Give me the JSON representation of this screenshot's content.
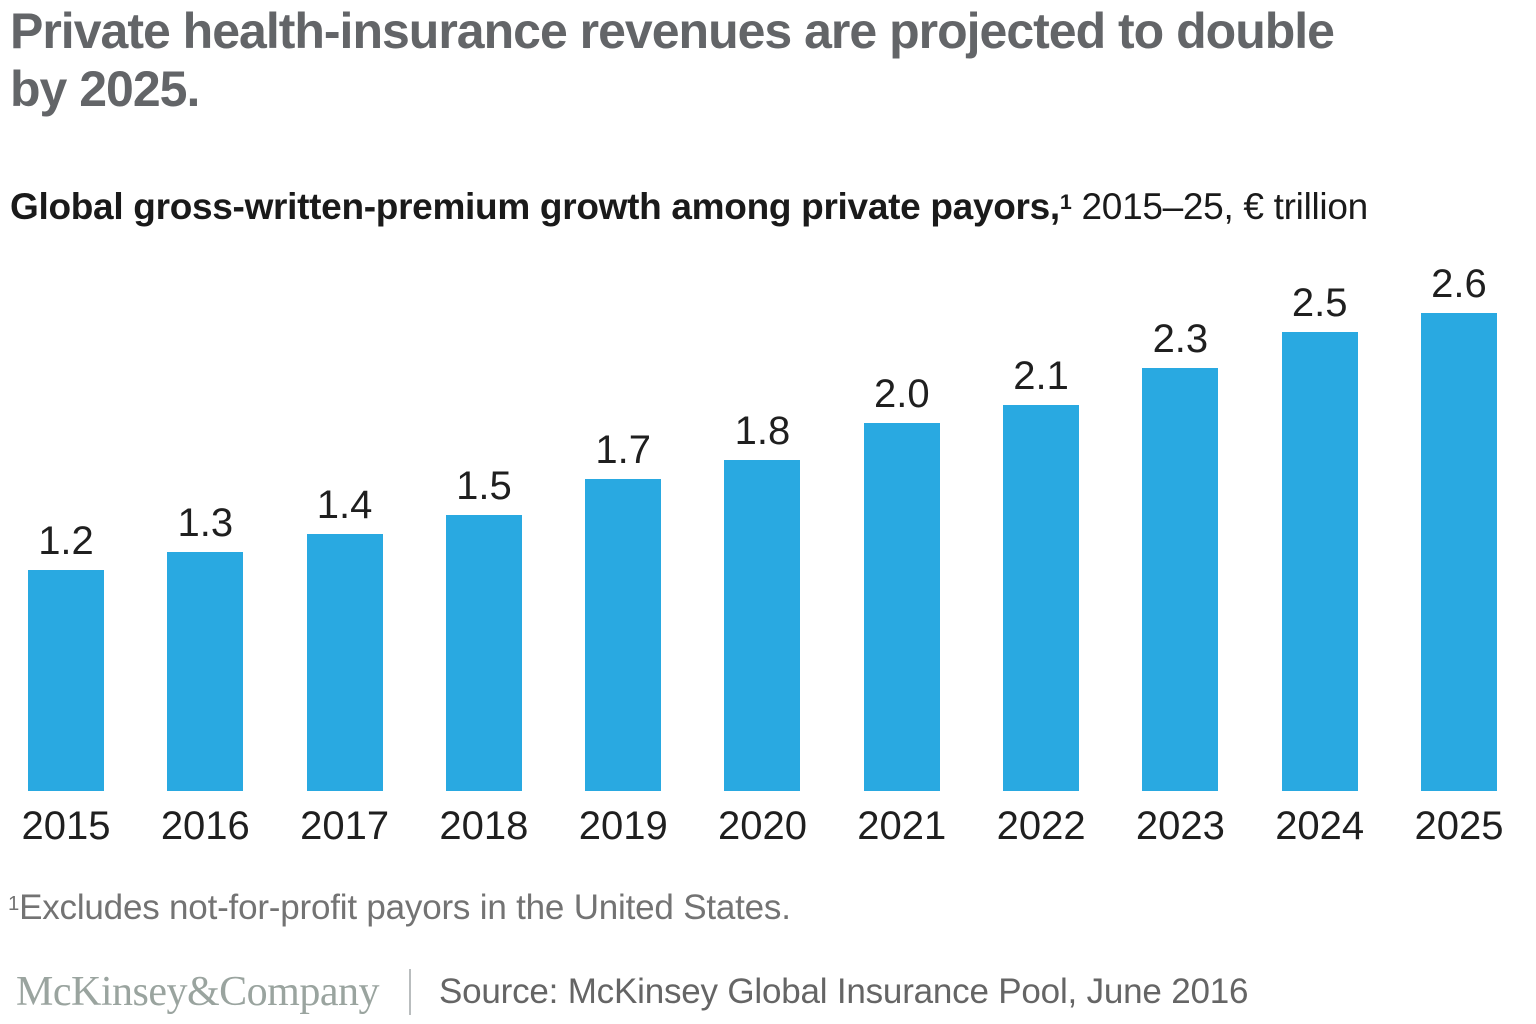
{
  "title": {
    "line1": "Private health-insurance revenues are projected to double",
    "line2": "by 2025."
  },
  "subtitle": {
    "bold": "Global gross-written-premium growth among private payors,",
    "sup": "1",
    "rest": " 2015–25, € trillion"
  },
  "chart_data": {
    "type": "bar",
    "categories": [
      "2015",
      "2016",
      "2017",
      "2018",
      "2019",
      "2020",
      "2021",
      "2022",
      "2023",
      "2024",
      "2025"
    ],
    "values": [
      1.2,
      1.3,
      1.4,
      1.5,
      1.7,
      1.8,
      2.0,
      2.1,
      2.3,
      2.5,
      2.6
    ],
    "title": "Global gross-written-premium growth among private payors, 2015–25, € trillion",
    "xlabel": "",
    "ylabel": "€ trillion",
    "ylim": [
      0,
      2.9
    ],
    "grid": false,
    "legend": false,
    "value_labels_shown": true,
    "bar_color": "#29a9e1",
    "label_color": "#1f1f1f"
  },
  "footnote": {
    "sup": "1",
    "text": "Excludes not-for-profit payors in the United States."
  },
  "footer": {
    "logo": "McKinsey&Company",
    "source": "Source: McKinsey Global Insurance Pool, June 2016"
  },
  "colors": {
    "title_gray": "#636568",
    "bar_blue": "#29a9e1",
    "footnote_gray": "#737373",
    "logo_gray_green": "#9aa49f",
    "source_gray": "#656565",
    "background": "#ffffff"
  }
}
